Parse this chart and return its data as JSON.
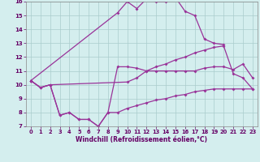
{
  "xlabel": "Windchill (Refroidissement éolien,°C)",
  "color": "#993399",
  "bg_color": "#d4eeee",
  "grid_color": "#aacccc",
  "ylim": [
    7,
    16
  ],
  "xlim": [
    -0.5,
    23.5
  ],
  "yticks": [
    7,
    8,
    9,
    10,
    11,
    12,
    13,
    14,
    15,
    16
  ],
  "xticks": [
    0,
    1,
    2,
    3,
    4,
    5,
    6,
    7,
    8,
    9,
    10,
    11,
    12,
    13,
    14,
    15,
    16,
    17,
    18,
    19,
    20,
    21,
    22,
    23
  ],
  "line_top_x": [
    0,
    9,
    10,
    11,
    12,
    13,
    14,
    15,
    16,
    17,
    18,
    19,
    20
  ],
  "line_top_y": [
    10.3,
    15.2,
    16.0,
    15.5,
    16.2,
    16.0,
    16.0,
    16.3,
    15.3,
    15.0,
    13.3,
    13.0,
    12.9
  ],
  "line_mid1_x": [
    0,
    1,
    2,
    10,
    11,
    12,
    13,
    14,
    15,
    16,
    17,
    18,
    19,
    20,
    21,
    22,
    23
  ],
  "line_mid1_y": [
    10.3,
    9.8,
    10.0,
    10.2,
    10.5,
    11.0,
    11.3,
    11.5,
    11.8,
    12.0,
    12.3,
    12.5,
    12.7,
    12.8,
    10.8,
    10.5,
    9.7
  ],
  "line_mid2_x": [
    0,
    1,
    2,
    3,
    4,
    5,
    6,
    7,
    8,
    9,
    10,
    11,
    12,
    13,
    14,
    15,
    16,
    17,
    18,
    19,
    20,
    21,
    22,
    23
  ],
  "line_mid2_y": [
    10.3,
    9.8,
    10.0,
    7.8,
    8.0,
    7.5,
    7.5,
    7.0,
    8.0,
    11.3,
    11.3,
    11.2,
    11.0,
    11.0,
    11.0,
    11.0,
    11.0,
    11.0,
    11.2,
    11.3,
    11.3,
    11.1,
    11.5,
    10.5
  ],
  "line_bot_x": [
    0,
    1,
    2,
    3,
    4,
    5,
    6,
    7,
    8,
    9,
    10,
    11,
    12,
    13,
    14,
    15,
    16,
    17,
    18,
    19,
    20,
    21,
    22,
    23
  ],
  "line_bot_y": [
    10.3,
    9.8,
    10.0,
    7.8,
    8.0,
    7.5,
    7.5,
    7.0,
    8.0,
    8.0,
    8.3,
    8.5,
    8.7,
    8.9,
    9.0,
    9.2,
    9.3,
    9.5,
    9.6,
    9.7,
    9.7,
    9.7,
    9.7,
    9.7
  ]
}
